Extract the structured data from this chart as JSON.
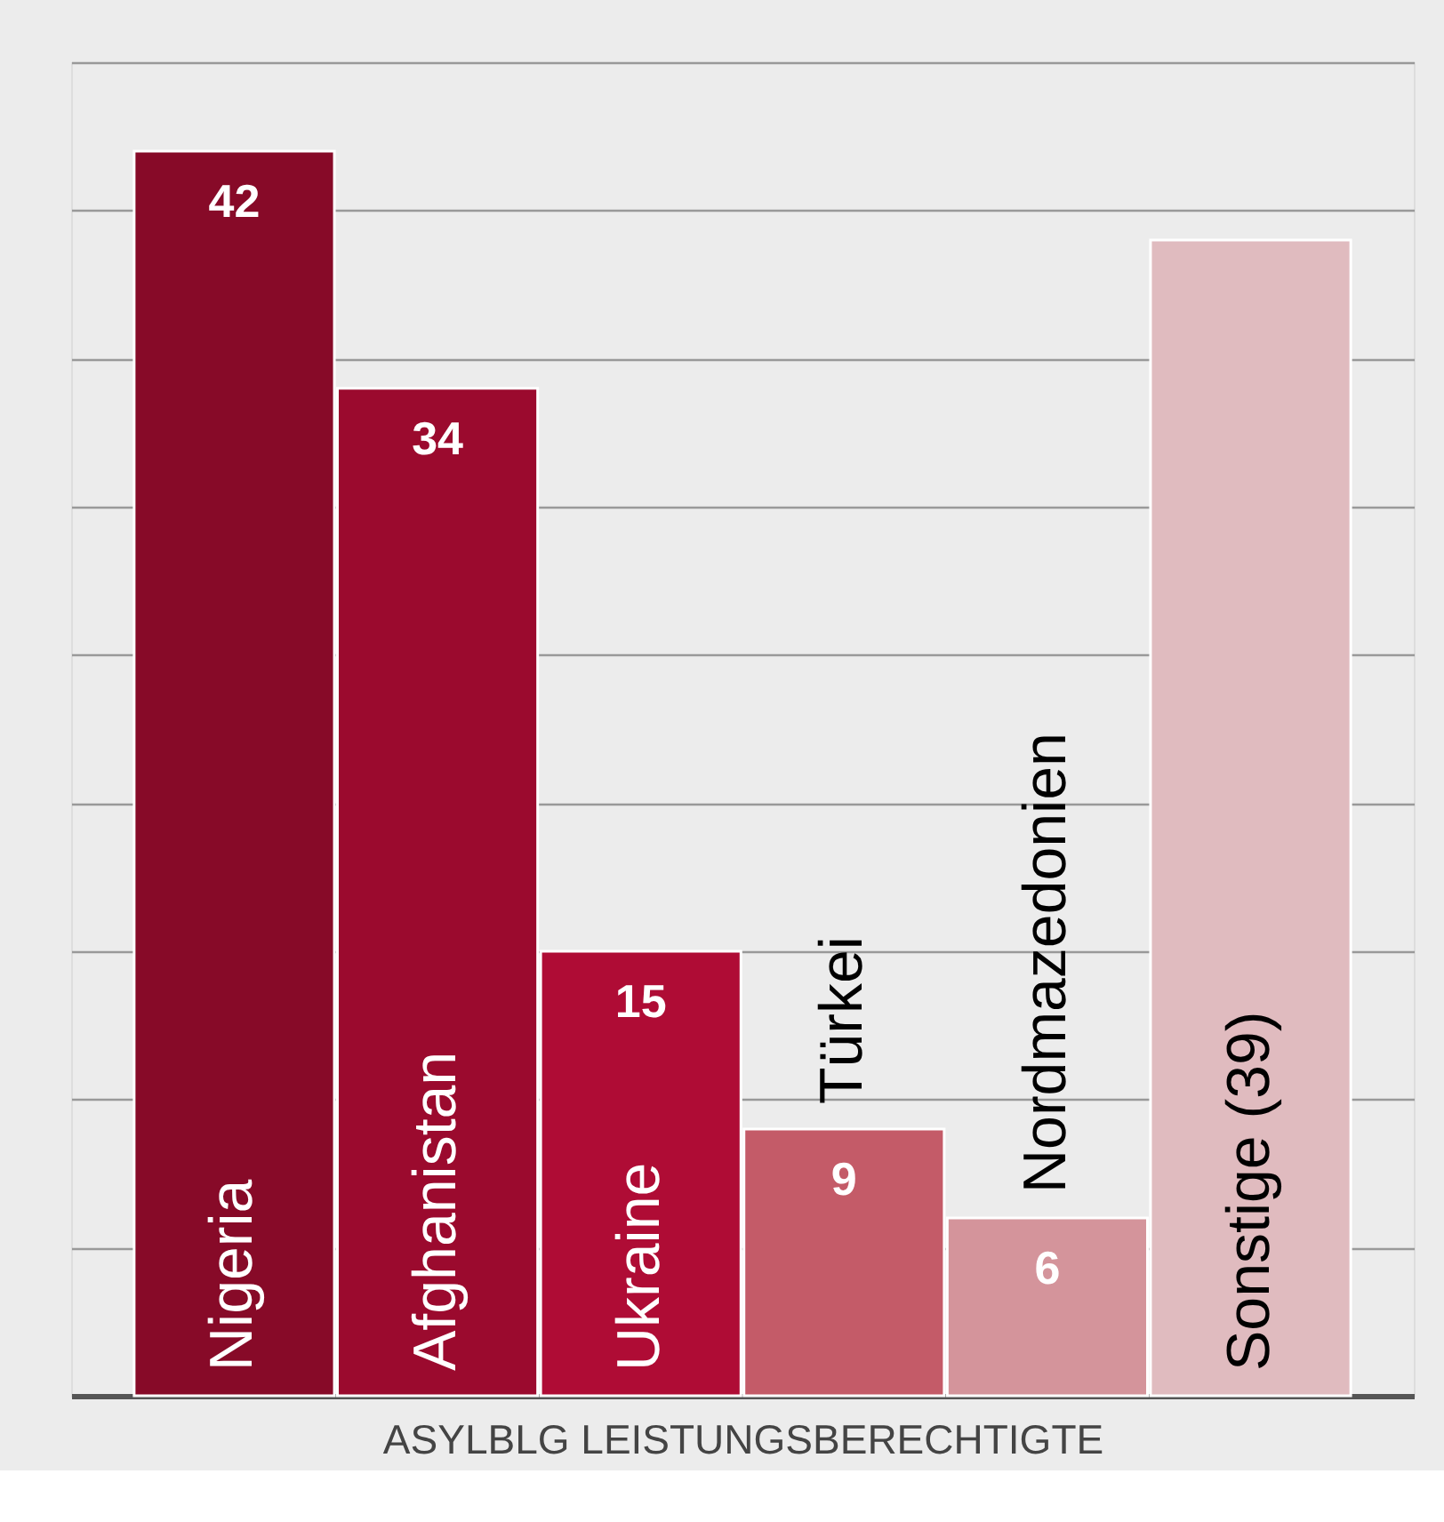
{
  "chart_data": {
    "type": "bar",
    "xlabel": "ASYLBLG LEISTUNGSBERECHTIGTE",
    "categories": [
      "Nigeria",
      "Afghanistan",
      "Ukraine",
      "Türkei",
      "Nordmazedonien",
      "Sonstige (39)"
    ],
    "values": [
      42,
      34,
      15,
      9,
      6,
      39
    ],
    "colors": [
      "#870a28",
      "#9b0a2e",
      "#af0c35",
      "#c45b68",
      "#d4949b",
      "#e0bbbf"
    ],
    "value_labels": [
      "42",
      "34",
      "15",
      "9",
      "6",
      null
    ],
    "ylim": [
      0,
      45
    ],
    "yticks": [
      {
        "value": 5,
        "label": null
      },
      {
        "value": 10,
        "label": null
      },
      {
        "value": 15,
        "label": null
      },
      {
        "value": 20,
        "label": null
      },
      {
        "value": 25,
        "label": null
      },
      {
        "value": 30,
        "label": null
      },
      {
        "value": 35,
        "label": null
      },
      {
        "value": 40,
        "label": null
      },
      {
        "value": 45,
        "label": null
      }
    ],
    "grid": "y",
    "tick_labels": false
  }
}
